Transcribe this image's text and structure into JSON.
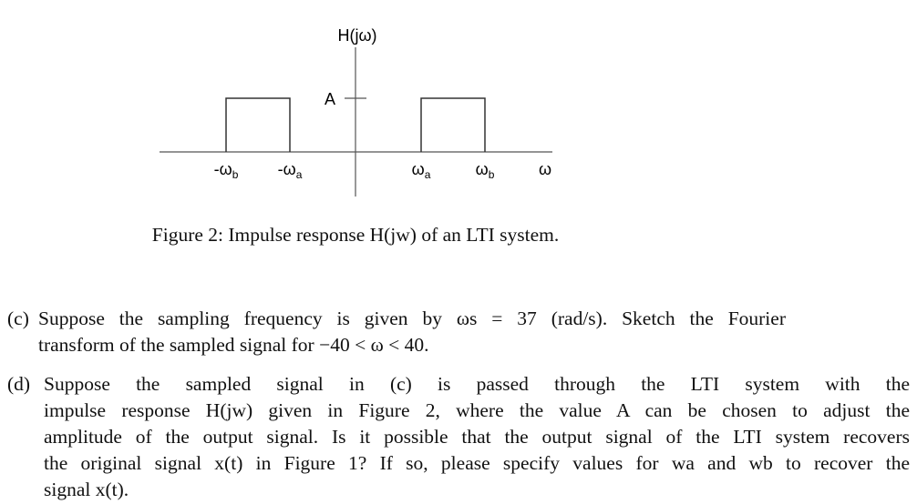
{
  "figure": {
    "y_label": "H(jω)",
    "a_label": "A",
    "x_labels": [
      {
        "base": "-ω",
        "sub": "b"
      },
      {
        "base": "-ω",
        "sub": "a"
      },
      {
        "base": "ω",
        "sub": "a"
      },
      {
        "base": "ω",
        "sub": "b"
      },
      {
        "base": "ω",
        "sub": ""
      }
    ],
    "caption": "Figure 2: Impulse response H(jw) of an LTI system."
  },
  "items": [
    {
      "label": "(c)",
      "lines": [
        "Suppose the sampling frequency is given by ωs = 37 (rad/s). Sketch the Fourier",
        "transform of the sampled signal for −40 < ω < 40."
      ]
    },
    {
      "label": "(d)",
      "lines": [
        "Suppose the sampled signal in (c) is passed through the LTI system with the",
        "impulse response H(jw) given in Figure 2, where the value A can be chosen to adjust the",
        "amplitude of the output signal. Is it possible that the output signal of the LTI system recovers",
        "the original signal x(t) in Figure 1? If so, please specify values for wa and wb to recover the",
        "signal x(t)."
      ]
    }
  ]
}
